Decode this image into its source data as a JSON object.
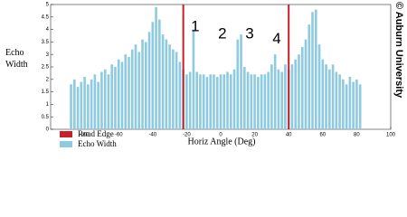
{
  "chart_data": {
    "type": "bar",
    "x": [
      -88,
      -86,
      -84,
      -82,
      -80,
      -78,
      -76,
      -74,
      -72,
      -70,
      -68,
      -66,
      -64,
      -62,
      -60,
      -58,
      -56,
      -54,
      -52,
      -50,
      -48,
      -46,
      -44,
      -42,
      -40,
      -38,
      -36,
      -34,
      -32,
      -30,
      -28,
      -26,
      -24,
      -22,
      -20,
      -18,
      -16,
      -14,
      -12,
      -10,
      -8,
      -6,
      -4,
      -2,
      0,
      2,
      4,
      6,
      8,
      10,
      12,
      14,
      16,
      18,
      20,
      22,
      24,
      26,
      28,
      30,
      32,
      34,
      36,
      38,
      40,
      42,
      44,
      46,
      48,
      50,
      52,
      54,
      56,
      58,
      60,
      62,
      64,
      66,
      68,
      70,
      72,
      74,
      76,
      78,
      80,
      82
    ],
    "series": [
      {
        "name": "Echo Width",
        "color": "#8fcbe0",
        "values": [
          1.8,
          2.0,
          1.7,
          1.9,
          2.1,
          1.8,
          2.0,
          2.2,
          1.9,
          2.3,
          2.4,
          2.2,
          2.6,
          2.5,
          2.8,
          2.7,
          3.0,
          2.9,
          3.2,
          3.4,
          3.1,
          3.6,
          3.5,
          3.9,
          4.3,
          4.9,
          4.4,
          3.8,
          3.6,
          3.4,
          3.2,
          3.1,
          2.7,
          2.4,
          2.2,
          2.3,
          4.0,
          2.3,
          2.2,
          2.2,
          2.1,
          2.2,
          2.2,
          2.1,
          2.2,
          2.2,
          2.3,
          2.2,
          2.4,
          3.6,
          3.8,
          2.5,
          2.3,
          2.2,
          2.2,
          2.1,
          2.2,
          2.2,
          2.3,
          2.6,
          3.0,
          2.4,
          2.3,
          2.6,
          2.4,
          2.6,
          2.8,
          3.0,
          3.3,
          3.6,
          4.2,
          4.7,
          4.8,
          3.4,
          2.8,
          2.6,
          2.4,
          2.6,
          2.3,
          2.2,
          2.0,
          1.8,
          2.1,
          1.9,
          2.0,
          1.8
        ]
      }
    ],
    "vlines": {
      "name": "Road Edge",
      "color": "#c8202a",
      "x": [
        -22,
        40
      ]
    },
    "annotations": [
      {
        "text": "1",
        "x": -15,
        "y": 4.1
      },
      {
        "text": "2",
        "x": 1,
        "y": 3.8
      },
      {
        "text": "3",
        "x": 17,
        "y": 3.8
      },
      {
        "text": "4",
        "x": 33,
        "y": 3.6
      }
    ],
    "xlabel": "Horiz Angle (Deg)",
    "ylabel": "Echo Width",
    "xlim": [
      -100,
      100
    ],
    "xticks": [
      -80,
      -60,
      -40,
      -20,
      0,
      20,
      40,
      60,
      80,
      100
    ],
    "ylim": [
      0,
      5
    ],
    "yticks": [
      0,
      0.5,
      1,
      1.5,
      2,
      2.5,
      3,
      3.5,
      4,
      4.5,
      5
    ],
    "credit": "© Auburn University"
  }
}
